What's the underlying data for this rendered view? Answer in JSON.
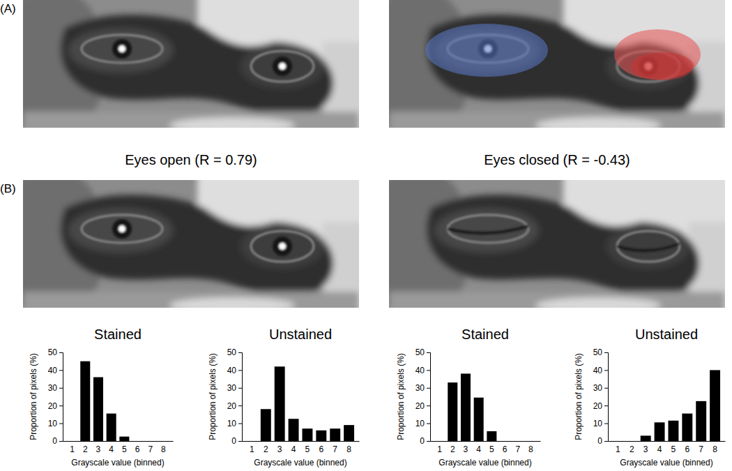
{
  "figure": {
    "panel_labels": [
      "(A)",
      "(B)"
    ],
    "captions": [
      "Eyes open (R = 0.79)",
      "Eyes closed (R = -0.43)"
    ]
  },
  "chart_data": [
    {
      "type": "bar",
      "title": "Stained",
      "categories": [
        1,
        2,
        3,
        4,
        5,
        6,
        7,
        8
      ],
      "values": [
        0,
        45,
        36,
        15.5,
        2.5,
        0,
        0,
        0
      ],
      "color": "#000000",
      "x_label": "Grayscale value (binned)",
      "y_label": "Proportion of pixels (%)",
      "ylim": [
        0,
        50
      ],
      "yticks": [
        0,
        10,
        20,
        30,
        40,
        50
      ]
    },
    {
      "type": "bar",
      "title": "Unstained",
      "categories": [
        1,
        2,
        3,
        4,
        5,
        6,
        7,
        8
      ],
      "values": [
        0,
        18,
        42,
        12.5,
        7,
        6,
        7,
        9
      ],
      "color": "#000000",
      "x_label": "Grayscale value (binned)",
      "y_label": "Proportion of pixels (%)",
      "ylim": [
        0,
        50
      ],
      "yticks": [
        0,
        10,
        20,
        30,
        40,
        50
      ]
    },
    {
      "type": "bar",
      "title": "Stained",
      "categories": [
        1,
        2,
        3,
        4,
        5,
        6,
        7,
        8
      ],
      "values": [
        0,
        33,
        38,
        24.5,
        5.5,
        0,
        0,
        0
      ],
      "color": "#000000",
      "x_label": "Grayscale value (binned)",
      "y_label": "Proportion of pixels (%)",
      "ylim": [
        0,
        50
      ],
      "yticks": [
        0,
        10,
        20,
        30,
        40,
        50
      ]
    },
    {
      "type": "bar",
      "title": "Unstained",
      "categories": [
        1,
        2,
        3,
        4,
        5,
        6,
        7,
        8
      ],
      "values": [
        0,
        0,
        3,
        10.5,
        11.5,
        15.5,
        22.5,
        40
      ],
      "color": "#000000",
      "x_label": "Grayscale value (binned)",
      "y_label": "Proportion of pixels (%)",
      "ylim": [
        0,
        50
      ],
      "yticks": [
        0,
        10,
        20,
        30,
        40,
        50
      ]
    }
  ]
}
